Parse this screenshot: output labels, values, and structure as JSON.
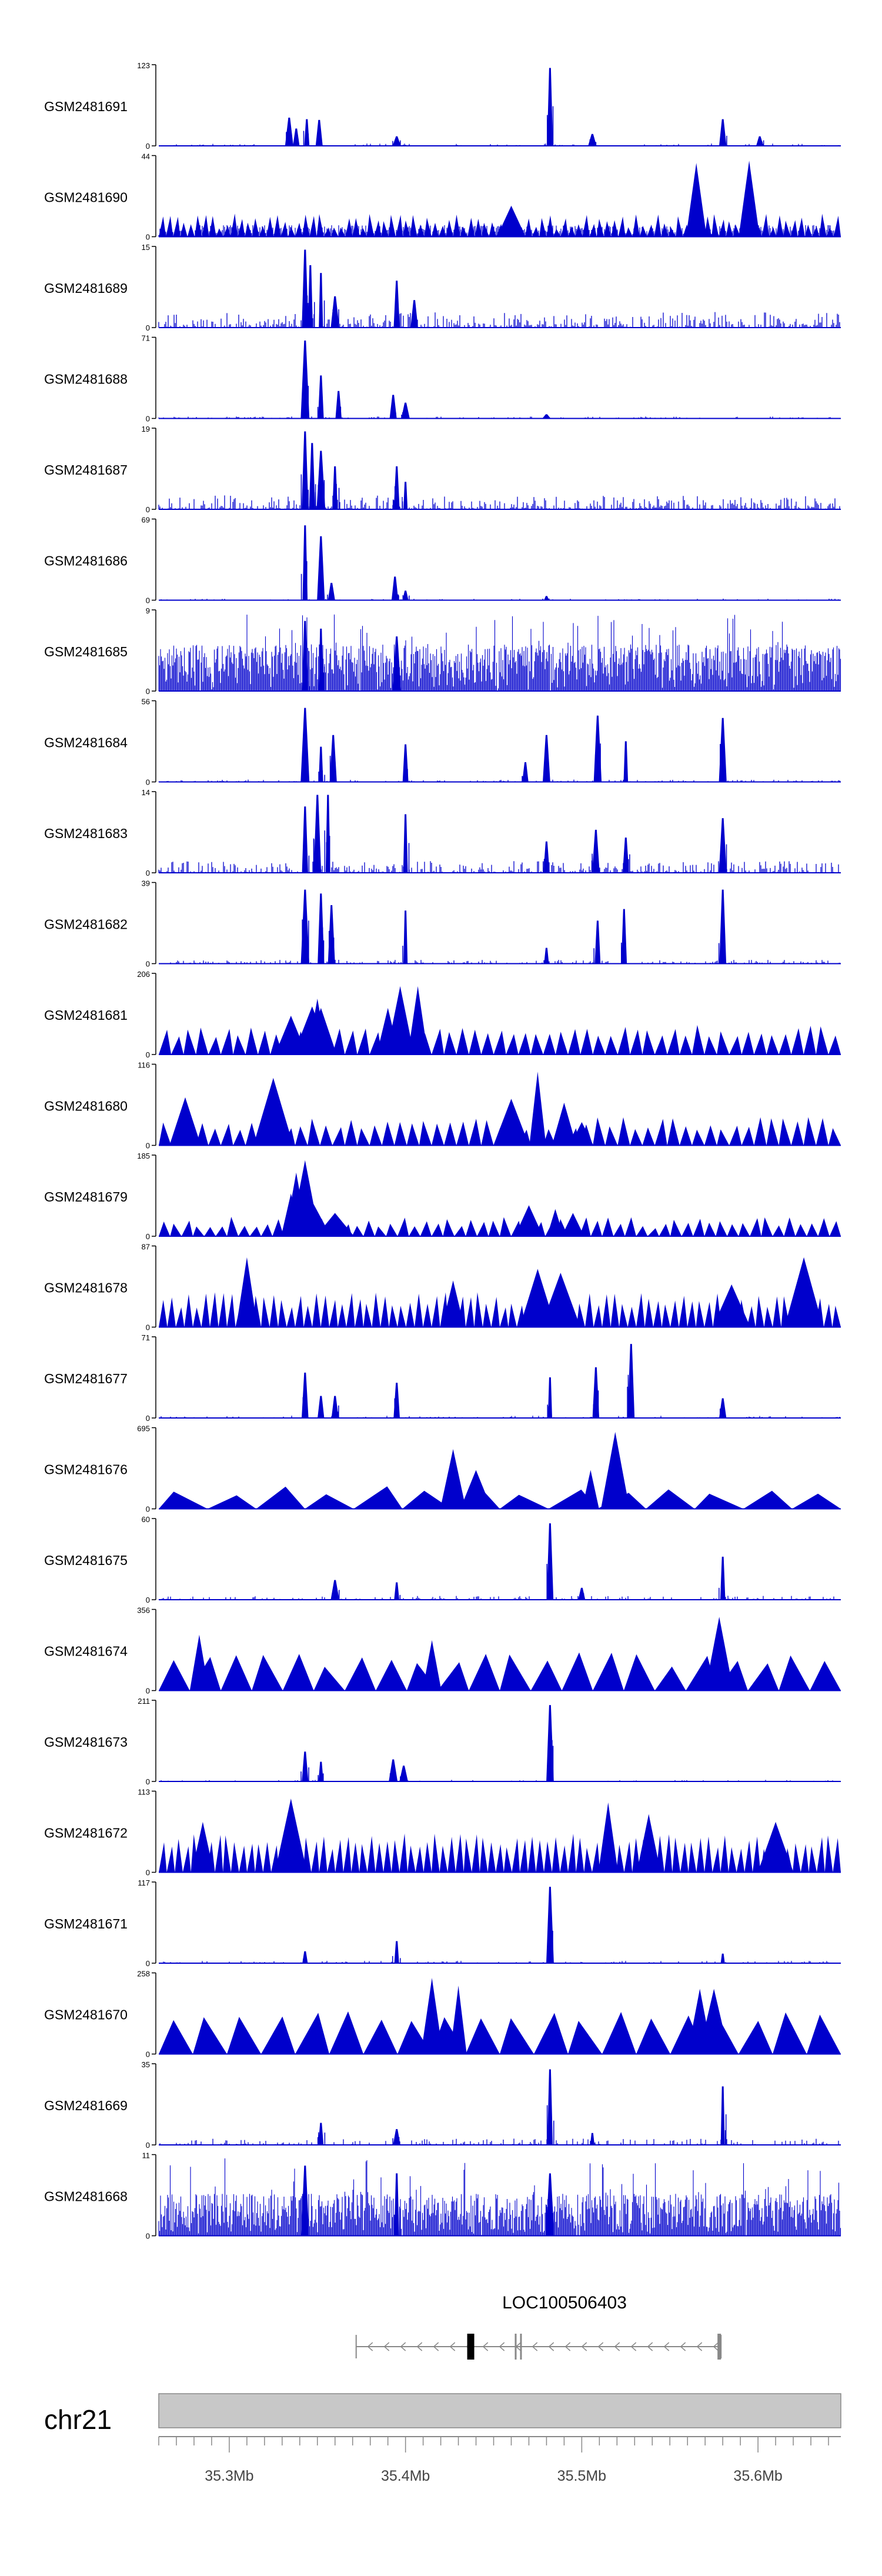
{
  "chart_data": {
    "type": "area",
    "title": "",
    "genome": {
      "chromosome": "chr21",
      "xlim": [
        35.26,
        35.647
      ],
      "unit": "Mb",
      "ticks": [
        35.3,
        35.4,
        35.5,
        35.6
      ],
      "tick_labels": [
        "35.3Mb",
        "35.4Mb",
        "35.5Mb",
        "35.6Mb"
      ]
    },
    "gene": {
      "name": "LOC100506403",
      "start": 35.372,
      "end": 35.579,
      "strand": "-",
      "exons": [
        [
          35.435,
          35.439
        ],
        [
          35.462,
          35.463
        ],
        [
          35.465,
          35.466
        ],
        [
          35.577,
          35.579
        ]
      ]
    },
    "colors": {
      "signal": "#0000cc",
      "gene": "#888888",
      "ideogram": "#c8c8c8",
      "text": "#000000"
    },
    "tracks": [
      {
        "name": "GSM2481691",
        "ymax": 123,
        "style": "peaks",
        "noise": 0.03,
        "density": 0.35,
        "seed": 1,
        "peaks": [
          [
            35.334,
            0.36
          ],
          [
            35.338,
            0.22
          ],
          [
            35.344,
            0.34
          ],
          [
            35.351,
            0.33
          ],
          [
            35.482,
            1.0
          ],
          [
            35.395,
            0.12
          ],
          [
            35.506,
            0.15
          ],
          [
            35.58,
            0.34
          ],
          [
            35.601,
            0.12
          ]
        ]
      },
      {
        "name": "GSM2481690",
        "ymax": 44,
        "style": "triangles",
        "base": 0.15,
        "count": 95,
        "hmin": 0.1,
        "hmax": 0.3,
        "seed": 2,
        "peaks": [
          [
            35.565,
            0.95
          ],
          [
            35.595,
            0.98
          ],
          [
            35.46,
            0.4
          ]
        ]
      },
      {
        "name": "GSM2481689",
        "ymax": 15,
        "style": "peaks",
        "noise": 0.2,
        "density": 0.9,
        "seed": 3,
        "peaks": [
          [
            35.343,
            1.0
          ],
          [
            35.346,
            0.8
          ],
          [
            35.352,
            0.7
          ],
          [
            35.395,
            0.6
          ],
          [
            35.405,
            0.35
          ],
          [
            35.36,
            0.4
          ]
        ]
      },
      {
        "name": "GSM2481688",
        "ymax": 71,
        "style": "peaks",
        "noise": 0.025,
        "density": 0.5,
        "seed": 4,
        "peaks": [
          [
            35.343,
            1.0
          ],
          [
            35.352,
            0.55
          ],
          [
            35.362,
            0.35
          ],
          [
            35.393,
            0.3
          ],
          [
            35.4,
            0.2
          ],
          [
            35.48,
            0.05
          ]
        ]
      },
      {
        "name": "GSM2481687",
        "ymax": 19,
        "style": "peaks",
        "noise": 0.18,
        "density": 0.9,
        "seed": 5,
        "peaks": [
          [
            35.343,
            1.0
          ],
          [
            35.347,
            0.85
          ],
          [
            35.352,
            0.75
          ],
          [
            35.36,
            0.55
          ],
          [
            35.395,
            0.55
          ],
          [
            35.4,
            0.35
          ]
        ]
      },
      {
        "name": "GSM2481686",
        "ymax": 69,
        "style": "peaks",
        "noise": 0.02,
        "density": 0.4,
        "seed": 6,
        "peaks": [
          [
            35.343,
            0.96
          ],
          [
            35.352,
            0.82
          ],
          [
            35.358,
            0.22
          ],
          [
            35.394,
            0.3
          ],
          [
            35.4,
            0.12
          ],
          [
            35.48,
            0.05
          ]
        ]
      },
      {
        "name": "GSM2481685",
        "ymax": 9,
        "style": "dense",
        "noise": 0.5,
        "density": 1.0,
        "seed": 7,
        "peaks": [
          [
            35.343,
            0.9
          ],
          [
            35.352,
            0.8
          ],
          [
            35.395,
            0.7
          ]
        ]
      },
      {
        "name": "GSM2481684",
        "ymax": 56,
        "style": "peaks",
        "noise": 0.03,
        "density": 0.5,
        "seed": 8,
        "peaks": [
          [
            35.343,
            0.95
          ],
          [
            35.352,
            0.45
          ],
          [
            35.359,
            0.6
          ],
          [
            35.4,
            0.48
          ],
          [
            35.468,
            0.25
          ],
          [
            35.48,
            0.6
          ],
          [
            35.509,
            0.85
          ],
          [
            35.525,
            0.52
          ],
          [
            35.58,
            0.82
          ]
        ]
      },
      {
        "name": "GSM2481683",
        "ymax": 14,
        "style": "peaks",
        "noise": 0.15,
        "density": 0.9,
        "seed": 9,
        "peaks": [
          [
            35.343,
            0.85
          ],
          [
            35.35,
            1.0
          ],
          [
            35.356,
            1.0
          ],
          [
            35.4,
            0.75
          ],
          [
            35.48,
            0.4
          ],
          [
            35.508,
            0.55
          ],
          [
            35.525,
            0.45
          ],
          [
            35.58,
            0.7
          ]
        ]
      },
      {
        "name": "GSM2481682",
        "ymax": 39,
        "style": "peaks",
        "noise": 0.05,
        "density": 0.6,
        "seed": 10,
        "peaks": [
          [
            35.343,
            0.95
          ],
          [
            35.352,
            0.9
          ],
          [
            35.358,
            0.75
          ],
          [
            35.4,
            0.68
          ],
          [
            35.48,
            0.2
          ],
          [
            35.509,
            0.55
          ],
          [
            35.524,
            0.7
          ],
          [
            35.58,
            0.95
          ]
        ]
      },
      {
        "name": "GSM2481681",
        "ymax": 206,
        "style": "triangles",
        "base": 0,
        "count": 55,
        "hmin": 0.22,
        "hmax": 0.38,
        "seed": 11,
        "peaks": [
          [
            35.335,
            0.5
          ],
          [
            35.347,
            0.62
          ],
          [
            35.352,
            0.6
          ],
          [
            35.39,
            0.6
          ],
          [
            35.397,
            0.88
          ],
          [
            35.407,
            0.88
          ],
          [
            35.35,
            0.72
          ]
        ]
      },
      {
        "name": "GSM2481680",
        "ymax": 116,
        "style": "triangles",
        "base": 0,
        "count": 55,
        "hmin": 0.2,
        "hmax": 0.38,
        "seed": 12,
        "peaks": [
          [
            35.275,
            0.62
          ],
          [
            35.325,
            0.87
          ],
          [
            35.475,
            0.95
          ],
          [
            35.46,
            0.6
          ],
          [
            35.49,
            0.55
          ],
          [
            35.5,
            0.3
          ]
        ]
      },
      {
        "name": "GSM2481679",
        "ymax": 185,
        "style": "triangles",
        "base": 0,
        "count": 60,
        "hmin": 0.1,
        "hmax": 0.25,
        "seed": 13,
        "peaks": [
          [
            35.335,
            0.55
          ],
          [
            35.338,
            0.82
          ],
          [
            35.343,
            0.98
          ],
          [
            35.347,
            0.45
          ],
          [
            35.36,
            0.3
          ],
          [
            35.47,
            0.4
          ],
          [
            35.485,
            0.35
          ],
          [
            35.495,
            0.3
          ]
        ]
      },
      {
        "name": "GSM2481678",
        "ymax": 87,
        "style": "triangles",
        "base": 0,
        "count": 80,
        "hmin": 0.25,
        "hmax": 0.45,
        "seed": 14,
        "peaks": [
          [
            35.31,
            0.9
          ],
          [
            35.427,
            0.6
          ],
          [
            35.475,
            0.75
          ],
          [
            35.488,
            0.7
          ],
          [
            35.626,
            0.9
          ],
          [
            35.585,
            0.55
          ]
        ]
      },
      {
        "name": "GSM2481677",
        "ymax": 71,
        "style": "peaks",
        "noise": 0.03,
        "density": 0.4,
        "seed": 15,
        "peaks": [
          [
            35.343,
            0.58
          ],
          [
            35.352,
            0.28
          ],
          [
            35.36,
            0.28
          ],
          [
            35.395,
            0.45
          ],
          [
            35.482,
            0.52
          ],
          [
            35.508,
            0.65
          ],
          [
            35.528,
            0.95
          ],
          [
            35.58,
            0.25
          ]
        ]
      },
      {
        "name": "GSM2481676",
        "ymax": 695,
        "style": "triangles",
        "base": 0,
        "count": 14,
        "hmin": 0.15,
        "hmax": 0.3,
        "seed": 16,
        "peaks": [
          [
            35.427,
            0.77
          ],
          [
            35.44,
            0.5
          ],
          [
            35.505,
            0.5
          ],
          [
            35.519,
            0.99
          ]
        ]
      },
      {
        "name": "GSM2481675",
        "ymax": 60,
        "style": "peaks",
        "noise": 0.05,
        "density": 0.45,
        "seed": 17,
        "peaks": [
          [
            35.482,
            0.98
          ],
          [
            35.58,
            0.55
          ],
          [
            35.36,
            0.25
          ],
          [
            35.395,
            0.22
          ],
          [
            35.5,
            0.15
          ]
        ]
      },
      {
        "name": "GSM2481674",
        "ymax": 356,
        "style": "triangles",
        "base": 0,
        "count": 22,
        "hmin": 0.3,
        "hmax": 0.5,
        "seed": 18,
        "peaks": [
          [
            35.283,
            0.72
          ],
          [
            35.415,
            0.65
          ],
          [
            35.578,
            0.95
          ]
        ]
      },
      {
        "name": "GSM2481673",
        "ymax": 211,
        "style": "peaks",
        "noise": 0.02,
        "density": 0.35,
        "seed": 19,
        "peaks": [
          [
            35.343,
            0.38
          ],
          [
            35.352,
            0.25
          ],
          [
            35.393,
            0.28
          ],
          [
            35.399,
            0.2
          ],
          [
            35.482,
            0.98
          ]
        ]
      },
      {
        "name": "GSM2481672",
        "ymax": 113,
        "style": "triangles",
        "base": 0,
        "count": 85,
        "hmin": 0.3,
        "hmax": 0.5,
        "seed": 20,
        "peaks": [
          [
            35.285,
            0.65
          ],
          [
            35.335,
            0.95
          ],
          [
            35.515,
            0.9
          ],
          [
            35.538,
            0.75
          ],
          [
            35.61,
            0.65
          ]
        ]
      },
      {
        "name": "GSM2481671",
        "ymax": 117,
        "style": "peaks",
        "noise": 0.03,
        "density": 0.35,
        "seed": 21,
        "peaks": [
          [
            35.482,
            0.98
          ],
          [
            35.395,
            0.28
          ],
          [
            35.343,
            0.15
          ],
          [
            35.58,
            0.12
          ]
        ]
      },
      {
        "name": "GSM2481670",
        "ymax": 258,
        "style": "triangles",
        "base": 0,
        "count": 20,
        "hmin": 0.4,
        "hmax": 0.55,
        "seed": 22,
        "peaks": [
          [
            35.415,
            0.98
          ],
          [
            35.43,
            0.88
          ],
          [
            35.567,
            0.84
          ],
          [
            35.575,
            0.84
          ]
        ]
      },
      {
        "name": "GSM2481669",
        "ymax": 35,
        "style": "peaks",
        "noise": 0.08,
        "density": 0.5,
        "seed": 23,
        "peaks": [
          [
            35.482,
            0.97
          ],
          [
            35.58,
            0.75
          ],
          [
            35.352,
            0.28
          ],
          [
            35.395,
            0.2
          ],
          [
            35.506,
            0.15
          ]
        ]
      },
      {
        "name": "GSM2481668",
        "ymax": 11,
        "style": "dense",
        "noise": 0.45,
        "density": 1.0,
        "seed": 24,
        "peaks": [
          [
            35.343,
            0.9
          ],
          [
            35.395,
            0.8
          ],
          [
            35.482,
            0.8
          ]
        ]
      }
    ]
  }
}
